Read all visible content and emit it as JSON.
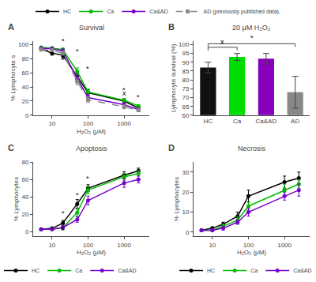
{
  "chart_data": [
    {
      "type": "line",
      "label": "A",
      "title": "Survival",
      "x_label": "H₂O₂ (μM)",
      "y_label": "% Lymphocyte s",
      "x": [
        5,
        10,
        20,
        50,
        100,
        1000,
        2500
      ],
      "log": "x",
      "xlim": [
        3,
        5000
      ],
      "xticks": [
        10,
        100,
        1000
      ],
      "ylim": [
        0,
        105
      ],
      "yticks": [
        0,
        20,
        40,
        60,
        80,
        100
      ],
      "grid": false,
      "legend": "top",
      "series": [
        {
          "name": "HC",
          "color": "#000000",
          "line_style": "solid",
          "marker": "circle",
          "values": [
            94,
            88,
            85,
            55,
            32,
            20,
            10
          ],
          "errors": [
            2,
            3,
            4,
            5,
            4,
            3,
            2
          ]
        },
        {
          "name": "Ca",
          "color": "#00bb00",
          "line_style": "solid",
          "marker": "circle",
          "values": [
            96,
            95,
            93,
            62,
            33,
            21,
            13
          ],
          "errors": [
            1,
            2,
            2,
            5,
            4,
            3,
            2
          ]
        },
        {
          "name": "Ca&AD",
          "color": "#7700cc",
          "line_style": "solid",
          "marker": "circle",
          "values": [
            95,
            94,
            91,
            52,
            25,
            15,
            8
          ],
          "errors": [
            1,
            2,
            3,
            6,
            4,
            3,
            2
          ]
        },
        {
          "name": "AD (previously published data).",
          "color": "#888888",
          "line_style": "dashed",
          "marker": "square",
          "values": [
            93,
            92,
            88,
            48,
            22,
            12,
            7
          ],
          "errors": [
            2,
            2,
            3,
            5,
            4,
            3,
            2
          ]
        }
      ],
      "annotations": [
        {
          "text": "*",
          "x": 20,
          "y": 97
        },
        {
          "text": "*",
          "x": 50,
          "y": 83
        },
        {
          "text": "*",
          "x": 100,
          "y": 58
        },
        {
          "text": "*",
          "x": 1000,
          "y": 28
        },
        {
          "text": "*",
          "x": 2500,
          "y": 18
        },
        {
          "text": "x",
          "x": 20,
          "y": 74
        },
        {
          "text": "x",
          "x": 1000,
          "y": 23
        }
      ]
    },
    {
      "type": "bar",
      "label": "B",
      "title": "20 μM H₂O₂",
      "y_label": "Lymphocyte survival (%)",
      "categories": [
        "HC",
        "Ca",
        "Ca&AD",
        "AD"
      ],
      "values": [
        87,
        93,
        92,
        73
      ],
      "errors": [
        3,
        2,
        3,
        9
      ],
      "colors": [
        "#111111",
        "#00dd00",
        "#8800bb",
        "#888888"
      ],
      "ylim": [
        60,
        102
      ],
      "yticks": [
        60,
        65,
        70,
        75,
        80,
        85,
        90,
        95,
        100
      ],
      "grid": false,
      "brackets": [
        {
          "from": "HC",
          "to": "Ca",
          "y": 98.5,
          "text": "x"
        },
        {
          "from": "HC",
          "to": "AD",
          "y": 100.5,
          "text": "*"
        }
      ]
    },
    {
      "type": "line",
      "label": "C",
      "title": "Apoptosis",
      "x_label": "H₂O₂ (μM)",
      "y_label": "% Lymphocytes",
      "x": [
        5,
        10,
        20,
        50,
        100,
        1000,
        2500
      ],
      "log": "x",
      "xlim": [
        3,
        5000
      ],
      "xticks": [
        10,
        100,
        1000
      ],
      "ylim": [
        -5,
        80
      ],
      "yticks": [
        0,
        20,
        40,
        60,
        80
      ],
      "grid": false,
      "legend": "bottom",
      "series": [
        {
          "name": "HC",
          "color": "#000000",
          "line_style": "solid",
          "marker": "circle",
          "values": [
            3,
            4,
            10,
            32,
            50,
            65,
            70
          ],
          "errors": [
            1,
            1,
            3,
            5,
            4,
            4,
            3
          ]
        },
        {
          "name": "Ca",
          "color": "#00bb00",
          "line_style": "solid",
          "marker": "circle",
          "values": [
            3,
            3,
            5,
            22,
            48,
            63,
            67
          ],
          "errors": [
            1,
            1,
            2,
            4,
            4,
            4,
            3
          ]
        },
        {
          "name": "Ca&AD",
          "color": "#7700cc",
          "line_style": "solid",
          "marker": "circle",
          "values": [
            3,
            3,
            5,
            14,
            36,
            56,
            60
          ],
          "errors": [
            1,
            1,
            2,
            3,
            5,
            5,
            4
          ]
        }
      ],
      "annotations": [
        {
          "text": "*",
          "x": 20,
          "y": 15
        },
        {
          "text": "*",
          "x": 50,
          "y": 36
        },
        {
          "text": "*",
          "x": 100,
          "y": 55
        },
        {
          "text": "x",
          "x": 20,
          "y": -2
        }
      ]
    },
    {
      "type": "line",
      "label": "D",
      "title": "Necrosis",
      "x_label": "H₂O₂ (μM)",
      "y_label": "% Lymphocytes",
      "x": [
        5,
        10,
        20,
        50,
        100,
        1000,
        2500
      ],
      "log": "x",
      "xlim": [
        3,
        5000
      ],
      "xticks": [
        10,
        100,
        1000
      ],
      "ylim": [
        -2,
        35
      ],
      "yticks": [
        0,
        10,
        20,
        30
      ],
      "grid": false,
      "legend": "bottom",
      "series": [
        {
          "name": "HC",
          "color": "#000000",
          "line_style": "solid",
          "marker": "circle",
          "values": [
            1,
            2,
            4,
            8,
            18,
            25,
            27
          ],
          "errors": [
            0.5,
            0.5,
            1,
            2,
            3,
            3,
            3
          ]
        },
        {
          "name": "Ca",
          "color": "#00bb00",
          "line_style": "solid",
          "marker": "circle",
          "values": [
            1,
            1,
            3,
            6,
            13,
            21,
            24
          ],
          "errors": [
            0.5,
            0.5,
            1,
            2,
            2,
            3,
            2
          ]
        },
        {
          "name": "Ca&AD",
          "color": "#7700cc",
          "line_style": "solid",
          "marker": "circle",
          "values": [
            1,
            1,
            2,
            5,
            10,
            18,
            21
          ],
          "errors": [
            0.5,
            0.5,
            1,
            1,
            2,
            2,
            3
          ]
        }
      ]
    }
  ]
}
